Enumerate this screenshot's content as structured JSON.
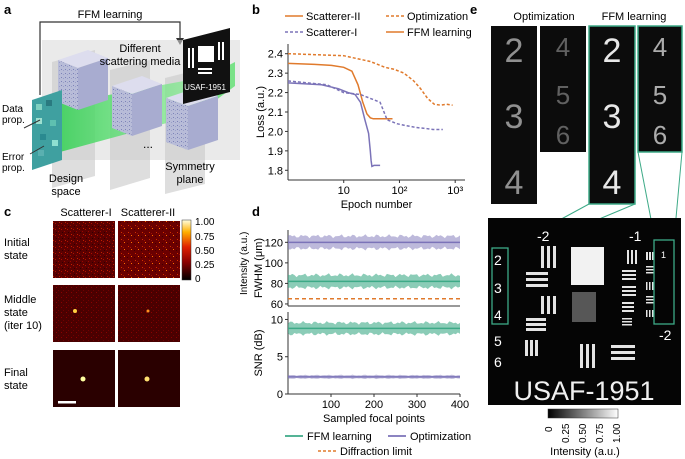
{
  "panel_a": {
    "letter": "a",
    "top_label": "FFM learning",
    "media_label_1": "Different",
    "media_label_2": "scattering media",
    "data_prop_1": "Data",
    "data_prop_2": "prop.",
    "error_prop_1": "Error",
    "error_prop_2": "prop.",
    "design_1": "Design",
    "design_2": "space",
    "dots": "...",
    "symmetry_1": "Symmetry",
    "symmetry_2": "plane",
    "target_label": "USAF-1951"
  },
  "panel_b": {
    "letter": "b",
    "legend": [
      "Scatterer-II",
      "Scatterer-I",
      "Optimization",
      "FFM learning"
    ]
  },
  "panel_c": {
    "letter": "c",
    "col_1": "Scatterer-I",
    "col_2": "Scatterer-II",
    "row_1": [
      "Initial",
      "state"
    ],
    "row_2": [
      "Middle",
      "state",
      "(iter 10)"
    ],
    "row_3": [
      "Final",
      "state"
    ],
    "colorbar_label": "Intensity (a.u.)",
    "colorbar_ticks": [
      "1.00",
      "0.75",
      "0.50",
      "0.25",
      "0"
    ]
  },
  "panel_d": {
    "letter": "d",
    "legend_ffm": "FFM learning",
    "legend_opt": "Optimization",
    "legend_diff": "Diffraction limit"
  },
  "panel_e": {
    "letter": "e",
    "title_opt": "Optimization",
    "title_ffm": "FFM learning",
    "colorbar_label": "Intensity (a.u.)",
    "colorbar_ticks": [
      "0",
      "0.25",
      "0.50",
      "0.75",
      "1.00"
    ],
    "usaf_text": "USAF-1951",
    "digits_opt_col1": [
      "2",
      "3",
      "4"
    ],
    "digits_opt_col2": [
      "4",
      "5",
      "6"
    ],
    "digits_ffm_col1": [
      "2",
      "3",
      "4"
    ],
    "digits_ffm_col2": [
      "4",
      "5",
      "6"
    ],
    "target_labels": [
      "-2",
      "-1",
      "-2",
      "2",
      "3",
      "4",
      "5",
      "6",
      "1"
    ]
  },
  "colors": {
    "ffm": "#e07a2c",
    "opt_orange": "#e07a2c",
    "scatterer1": "#7b73b8",
    "ffm_green": "#3daa87",
    "opt_purple": "#7b73b8",
    "diffraction": "#e07a2c"
  },
  "chart_data": [
    {
      "type": "line",
      "panel": "b",
      "xlabel": "Epoch number",
      "ylabel": "Loss (a.u.)",
      "xscale": "log",
      "xlim": [
        1,
        1500
      ],
      "ylim": [
        1.75,
        2.45
      ],
      "xticks": [
        "10",
        "10²",
        "10³"
      ],
      "xtick_values": [
        10,
        100,
        1000
      ],
      "yticks": [
        "2.4",
        "2.3",
        "2.2",
        "2.1",
        "2.0",
        "1.9",
        "1.8"
      ],
      "ytick_values": [
        2.4,
        2.3,
        2.2,
        2.1,
        2.0,
        1.9,
        1.8
      ],
      "series": [
        {
          "name": "Scatterer-II FFM learning",
          "color": "#e07a2c",
          "dash": false,
          "x": [
            1,
            3,
            6,
            10,
            14,
            18,
            22,
            26,
            30,
            34,
            40,
            55,
            75
          ],
          "y": [
            2.35,
            2.345,
            2.34,
            2.33,
            2.31,
            2.24,
            2.15,
            2.09,
            2.07,
            2.065,
            2.065,
            2.065,
            2.065
          ]
        },
        {
          "name": "Scatterer-I FFM learning",
          "color": "#7b73b8",
          "dash": false,
          "x": [
            1,
            4,
            8,
            12,
            16,
            20,
            24,
            28,
            30,
            31,
            32,
            35,
            40,
            45
          ],
          "y": [
            2.25,
            2.24,
            2.22,
            2.2,
            2.19,
            2.15,
            2.06,
            1.99,
            1.9,
            1.85,
            1.82,
            1.825,
            1.825,
            1.825
          ]
        },
        {
          "name": "Scatterer-II Optimization",
          "color": "#e07a2c",
          "dash": true,
          "x": [
            1,
            10,
            30,
            55,
            80,
            120,
            180,
            240,
            320,
            420,
            550,
            700,
            900
          ],
          "y": [
            2.4,
            2.39,
            2.36,
            2.33,
            2.32,
            2.3,
            2.26,
            2.22,
            2.17,
            2.14,
            2.135,
            2.14,
            2.135
          ]
        },
        {
          "name": "Scatterer-I Optimization",
          "color": "#7b73b8",
          "dash": true,
          "x": [
            1,
            5,
            10,
            20,
            30,
            45,
            60,
            90,
            130,
            200,
            300,
            400,
            500,
            600
          ],
          "y": [
            2.26,
            2.24,
            2.2,
            2.19,
            2.17,
            2.15,
            2.06,
            2.04,
            2.03,
            2.02,
            2.015,
            2.01,
            2.01,
            2.01
          ]
        }
      ]
    },
    {
      "type": "area",
      "panel": "d-top",
      "xlabel": "",
      "ylabel": "FWHM (μm)",
      "xlim": [
        0,
        400
      ],
      "ylim": [
        58,
        132
      ],
      "yticks": [
        "120",
        "100",
        "80",
        "60"
      ],
      "ytick_values": [
        120,
        100,
        80,
        60
      ],
      "series": [
        {
          "name": "Optimization",
          "color": "#7b73b8",
          "mean": 120,
          "band": [
            112,
            128
          ]
        },
        {
          "name": "FFM learning",
          "color": "#3daa87",
          "mean": 82,
          "band": [
            73,
            89
          ]
        },
        {
          "name": "Diffraction limit",
          "color": "#e07a2c",
          "value": 65
        }
      ]
    },
    {
      "type": "area",
      "panel": "d-bottom",
      "xlabel": "Sampled focal points",
      "ylabel": "SNR (dB)",
      "xlim": [
        0,
        400
      ],
      "ylim": [
        0,
        11
      ],
      "xticks": [
        "100",
        "200",
        "300",
        "400"
      ],
      "xtick_values": [
        100,
        200,
        300,
        400
      ],
      "yticks": [
        "10",
        "5",
        "0"
      ],
      "ytick_values": [
        10,
        5,
        0
      ],
      "series": [
        {
          "name": "FFM learning",
          "color": "#3daa87",
          "mean": 8.8,
          "band": [
            7.8,
            9.8
          ]
        },
        {
          "name": "Optimization",
          "color": "#7b73b8",
          "mean": 2.3,
          "band": [
            2.0,
            2.6
          ]
        }
      ]
    }
  ]
}
